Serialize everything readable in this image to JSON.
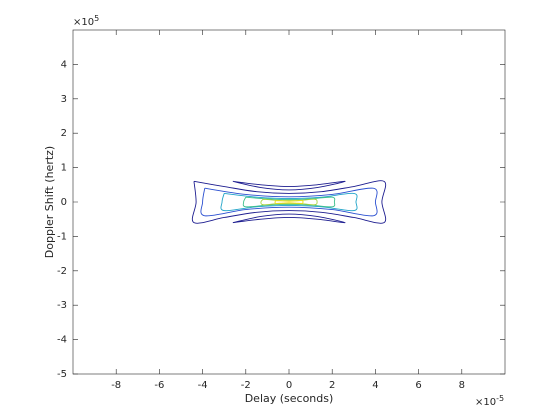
{
  "chart_data": {
    "type": "contour",
    "x_label": "Delay (seconds)",
    "y_label": "Doppler Shift (hertz)",
    "multiplier_base": "×10",
    "x_exponent": "-5",
    "y_exponent": "5",
    "xlim": [
      -10,
      10
    ],
    "xticks": [
      -8,
      -6,
      -4,
      -2,
      0,
      2,
      4,
      6,
      8
    ],
    "ylim": [
      -5,
      5
    ],
    "yticks": [
      -5,
      -4,
      -3,
      -2,
      -1,
      0,
      1,
      2,
      3,
      4
    ],
    "series": [
      {
        "color": "#1c1c8f",
        "x": [
          -4.4,
          -3,
          -1.5,
          0,
          1.5,
          3,
          4.4,
          4.3,
          4.4,
          3,
          1.5,
          0,
          -1.5,
          -3,
          -4.4,
          -4.3,
          -4.4
        ],
        "y": [
          0.6,
          0.45,
          0.3,
          0.25,
          0.3,
          0.45,
          0.6,
          0,
          -0.6,
          -0.45,
          -0.3,
          -0.25,
          -0.3,
          -0.45,
          -0.6,
          0,
          0.6
        ]
      },
      {
        "color": "#1c1c8f",
        "x": [
          -2.6,
          -1.3,
          0,
          1.3,
          2.6,
          1.3,
          0,
          -1.3,
          -2.6
        ],
        "y": [
          0.6,
          0.5,
          0.45,
          0.5,
          0.6,
          0.42,
          0.35,
          0.42,
          0.6
        ]
      },
      {
        "color": "#1c1c8f",
        "x": [
          -2.6,
          -1.3,
          0,
          1.3,
          2.6,
          1.3,
          0,
          -1.3,
          -2.6
        ],
        "y": [
          -0.6,
          -0.5,
          -0.45,
          -0.5,
          -0.6,
          -0.42,
          -0.35,
          -0.42,
          -0.6
        ]
      },
      {
        "color": "#2a4fd0",
        "x": [
          -3.9,
          -2,
          0,
          2,
          3.9,
          4.0,
          3.9,
          2,
          0,
          -2,
          -3.9,
          -4.0,
          -3.9
        ],
        "y": [
          0.4,
          0.22,
          0.15,
          0.22,
          0.4,
          0,
          -0.4,
          -0.22,
          -0.15,
          -0.22,
          -0.4,
          0,
          0.4
        ]
      },
      {
        "color": "#1fa3c8",
        "x": [
          -3,
          -1.5,
          0,
          1.5,
          3,
          3.1,
          3,
          1.5,
          0,
          -1.5,
          -3,
          -3.1,
          -3
        ],
        "y": [
          0.25,
          0.14,
          0.1,
          0.14,
          0.25,
          0,
          -0.25,
          -0.14,
          -0.1,
          -0.14,
          -0.25,
          0,
          0.25
        ]
      },
      {
        "color": "#3cbf8a",
        "x": [
          -2,
          -1,
          0,
          1,
          2,
          2.1,
          2,
          1,
          0,
          -1,
          -2,
          -2.1,
          -2
        ],
        "y": [
          0.14,
          0.09,
          0.07,
          0.09,
          0.14,
          0,
          -0.14,
          -0.09,
          -0.07,
          -0.09,
          -0.14,
          0,
          0.14
        ]
      },
      {
        "color": "#a6d13c",
        "x": [
          -1.2,
          -0.6,
          0,
          0.6,
          1.2,
          1.3,
          1.2,
          0.6,
          0,
          -0.6,
          -1.2,
          -1.3,
          -1.2
        ],
        "y": [
          0.08,
          0.05,
          0.04,
          0.05,
          0.08,
          0,
          -0.08,
          -0.05,
          -0.04,
          -0.05,
          -0.08,
          0,
          0.08
        ]
      },
      {
        "color": "#f2e11e",
        "x": [
          -0.6,
          -0.3,
          0,
          0.3,
          0.6,
          0.65,
          0.6,
          0.3,
          0,
          -0.3,
          -0.6,
          -0.65,
          -0.6
        ],
        "y": [
          0.04,
          0.03,
          0.02,
          0.03,
          0.04,
          0,
          -0.04,
          -0.03,
          -0.02,
          -0.03,
          -0.04,
          0,
          0.04
        ]
      }
    ]
  }
}
